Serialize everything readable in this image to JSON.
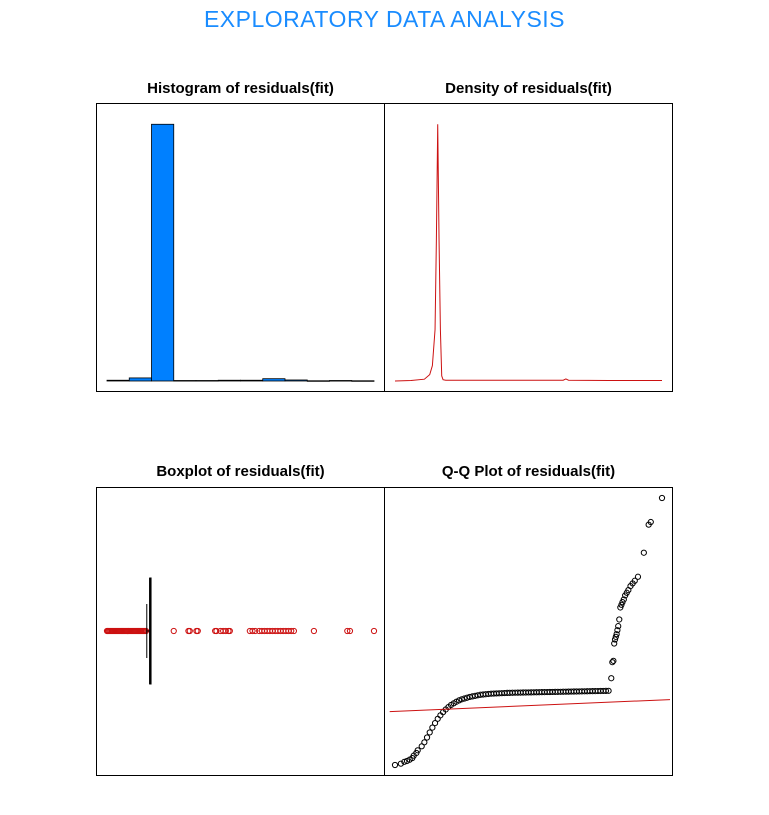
{
  "page": {
    "title": "EXPLORATORY  DATA  ANALYSIS"
  },
  "colors": {
    "title": "#1a8cff",
    "bars": "#0080ff",
    "density": "#cc1111",
    "outliers": "#cc1111",
    "qq_line": "#cc1111",
    "points": "#000000"
  },
  "chart_data": [
    {
      "type": "bar",
      "title": "Histogram of residuals(fit)",
      "axes_shown": false,
      "frame": true,
      "bin_edges": [
        0,
        1,
        2,
        3,
        4,
        5,
        6,
        7,
        8,
        9,
        10,
        11,
        12
      ],
      "values": [
        0.3,
        1.2,
        100,
        0.2,
        0.2,
        0.3,
        0.3,
        0.9,
        0.4,
        0.1,
        0.2,
        0.1
      ],
      "ylim": [
        0,
        104
      ],
      "bar_color": "#0080ff"
    },
    {
      "type": "line",
      "title": "Density of residuals(fit)",
      "axes_shown": false,
      "frame": true,
      "x": [
        0,
        6,
        11,
        13,
        14,
        15,
        15.5,
        16,
        16.5,
        17,
        17.5,
        18,
        19,
        25,
        35,
        50,
        63,
        64,
        65,
        80,
        100
      ],
      "y": [
        0,
        0.2,
        0.7,
        2.5,
        6,
        20,
        55,
        100,
        55,
        20,
        2,
        0.5,
        0.3,
        0.3,
        0.3,
        0.3,
        0.3,
        0.8,
        0.3,
        0.2,
        0.2
      ],
      "ylim": [
        0,
        104
      ],
      "color": "#cc1111"
    },
    {
      "type": "scatter",
      "subtype": "horizontal boxplot",
      "title": "Boxplot of residuals(fit)",
      "axes_shown": false,
      "frame": true,
      "box": {
        "whisker_low": 14.9,
        "q1": 16.0,
        "median": 16.15,
        "q3": 16.5,
        "whisker_high": 16.55
      },
      "outliers": [
        0,
        0.3,
        0.6,
        1,
        1.4,
        1.8,
        2.2,
        2.6,
        3,
        3.4,
        3.8,
        4.2,
        4.6,
        5,
        5.4,
        5.8,
        6.2,
        6.6,
        7,
        7.4,
        7.8,
        8.2,
        8.6,
        9,
        9.4,
        9.8,
        10.2,
        10.6,
        11,
        11.4,
        11.8,
        12.2,
        12.6,
        13,
        13.4,
        13.8,
        14.2,
        14.6,
        25,
        30.5,
        31,
        33.5,
        34,
        40.5,
        41,
        42.5,
        43.5,
        44.5,
        45.5,
        46,
        53.5,
        54.5,
        55.5,
        57,
        58,
        59,
        60,
        61,
        62,
        63,
        64,
        65,
        66,
        67,
        68,
        69,
        70,
        77.5,
        90,
        91,
        100
      ],
      "outlier_color": "#cc1111"
    },
    {
      "type": "scatter",
      "title": "Q-Q Plot of residuals(fit)",
      "axes_shown": false,
      "frame": true,
      "x": [
        0,
        2.2,
        3.5,
        4.5,
        5.5,
        6.5,
        7,
        8,
        8.5,
        10,
        11,
        12,
        13,
        14,
        15,
        16,
        17,
        18,
        19,
        20,
        21,
        22,
        23,
        24,
        25,
        26,
        27,
        28,
        29,
        30,
        31,
        32,
        33,
        34,
        35,
        36,
        37,
        38,
        39,
        40,
        41,
        42,
        43,
        44,
        45,
        46,
        47,
        48,
        49,
        50,
        51,
        52,
        53,
        54,
        55,
        56,
        57,
        58,
        59,
        60,
        61,
        62,
        63,
        64,
        65,
        66,
        67,
        68,
        69,
        70,
        71,
        72,
        73,
        74,
        75,
        76,
        77,
        78,
        79,
        80,
        81,
        81.4,
        81.8,
        82.1,
        82.4,
        82.7,
        83,
        83.3,
        83.6,
        84,
        84.4,
        84.8,
        85.2,
        85.7,
        86.2,
        86.8,
        87.4,
        88.2,
        89,
        89.8,
        91,
        93.2,
        95,
        95.8,
        100
      ],
      "y": [
        0,
        0.5,
        1.2,
        1.5,
        2,
        2.6,
        3.5,
        4.5,
        5.5,
        7,
        8.5,
        10.3,
        12.2,
        14,
        15.7,
        17.3,
        18.6,
        19.8,
        20.8,
        21.7,
        22.5,
        23.1,
        23.7,
        24.2,
        24.6,
        24.9,
        25.2,
        25.5,
        25.7,
        25.9,
        26.1,
        26.3,
        26.4,
        26.5,
        26.6,
        26.7,
        26.75,
        26.8,
        26.85,
        26.9,
        26.95,
        27,
        27.02,
        27.05,
        27.08,
        27.1,
        27.12,
        27.14,
        27.16,
        27.18,
        27.2,
        27.22,
        27.24,
        27.26,
        27.28,
        27.3,
        27.32,
        27.34,
        27.36,
        27.38,
        27.4,
        27.42,
        27.44,
        27.46,
        27.48,
        27.5,
        27.52,
        27.54,
        27.56,
        27.58,
        27.6,
        27.62,
        27.64,
        27.66,
        27.68,
        27.7,
        27.72,
        27.74,
        27.76,
        27.78,
        32.5,
        38.5,
        39,
        45.5,
        47,
        48,
        49,
        50.5,
        52,
        54.5,
        59,
        60,
        61,
        62,
        63.5,
        64.5,
        65.5,
        67,
        68,
        69,
        70.5,
        79.5,
        90,
        91,
        100
      ],
      "reference_line": {
        "x": [
          -2,
          103
        ],
        "y": [
          20,
          24.5
        ]
      },
      "point_color": "#000000",
      "line_color": "#cc1111"
    }
  ]
}
